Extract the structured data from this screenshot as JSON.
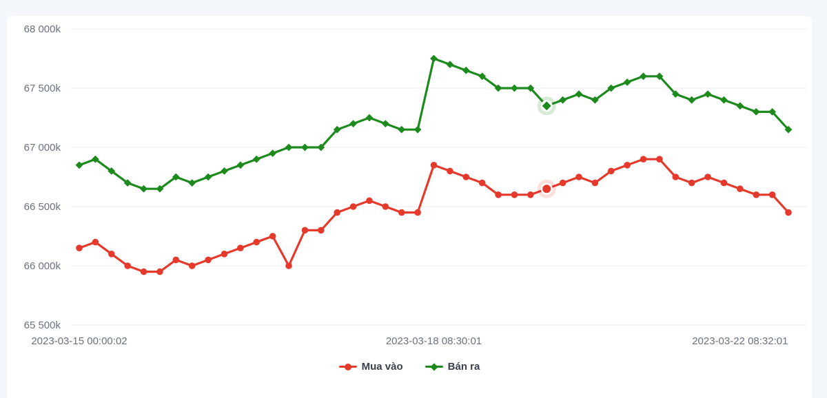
{
  "page": {
    "background_color": "#f3f6fa",
    "card_color": "#ffffff"
  },
  "chart_data": {
    "type": "line",
    "title": "",
    "x_axis": {
      "type": "category",
      "num_points": 45,
      "tick_labels": [
        {
          "index": 0,
          "label": "2023-03-15 00:00:02"
        },
        {
          "index": 22,
          "label": "2023-03-18 08:30:01"
        },
        {
          "index": 41,
          "label": "2023-03-22 08:32:01"
        }
      ]
    },
    "y_axis": {
      "min": 65500,
      "max": 68000,
      "step": 500,
      "tick_labels": [
        {
          "value": 68000,
          "label": "68 000k"
        },
        {
          "value": 67500,
          "label": "67 500k"
        },
        {
          "value": 67000,
          "label": "67 000k"
        },
        {
          "value": 66500,
          "label": "66 500k"
        },
        {
          "value": 66000,
          "label": "66 000k"
        },
        {
          "value": 65500,
          "label": "65 500k"
        }
      ]
    },
    "grid": {
      "show": true,
      "color": "#ececec"
    },
    "axis_label_color": "#6a7280",
    "legend": {
      "position": "bottom-center",
      "text_color": "#39404d"
    },
    "highlight_index": 29,
    "series": [
      {
        "name": "Mua vào",
        "color": "#e5392c",
        "halo_color": "rgba(229,57,44,0.16)",
        "marker": "circle",
        "values": [
          66150,
          66200,
          66100,
          66000,
          65950,
          65950,
          66050,
          66000,
          66050,
          66100,
          66150,
          66200,
          66250,
          66000,
          66300,
          66300,
          66450,
          66500,
          66550,
          66500,
          66450,
          66450,
          66850,
          66800,
          66750,
          66700,
          66600,
          66600,
          66600,
          66650,
          66700,
          66750,
          66700,
          66800,
          66850,
          66900,
          66900,
          66750,
          66700,
          66750,
          66700,
          66650,
          66600,
          66600,
          66450
        ]
      },
      {
        "name": "Bán ra",
        "color": "#1c8a1c",
        "halo_color": "rgba(28,138,28,0.18)",
        "marker": "diamond",
        "values": [
          66850,
          66900,
          66800,
          66700,
          66650,
          66650,
          66750,
          66700,
          66750,
          66800,
          66850,
          66900,
          66950,
          67000,
          67000,
          67000,
          67150,
          67200,
          67250,
          67200,
          67150,
          67150,
          67750,
          67700,
          67650,
          67600,
          67500,
          67500,
          67500,
          67350,
          67400,
          67450,
          67400,
          67500,
          67550,
          67600,
          67600,
          67450,
          67400,
          67450,
          67400,
          67350,
          67300,
          67300,
          67150
        ]
      }
    ]
  }
}
